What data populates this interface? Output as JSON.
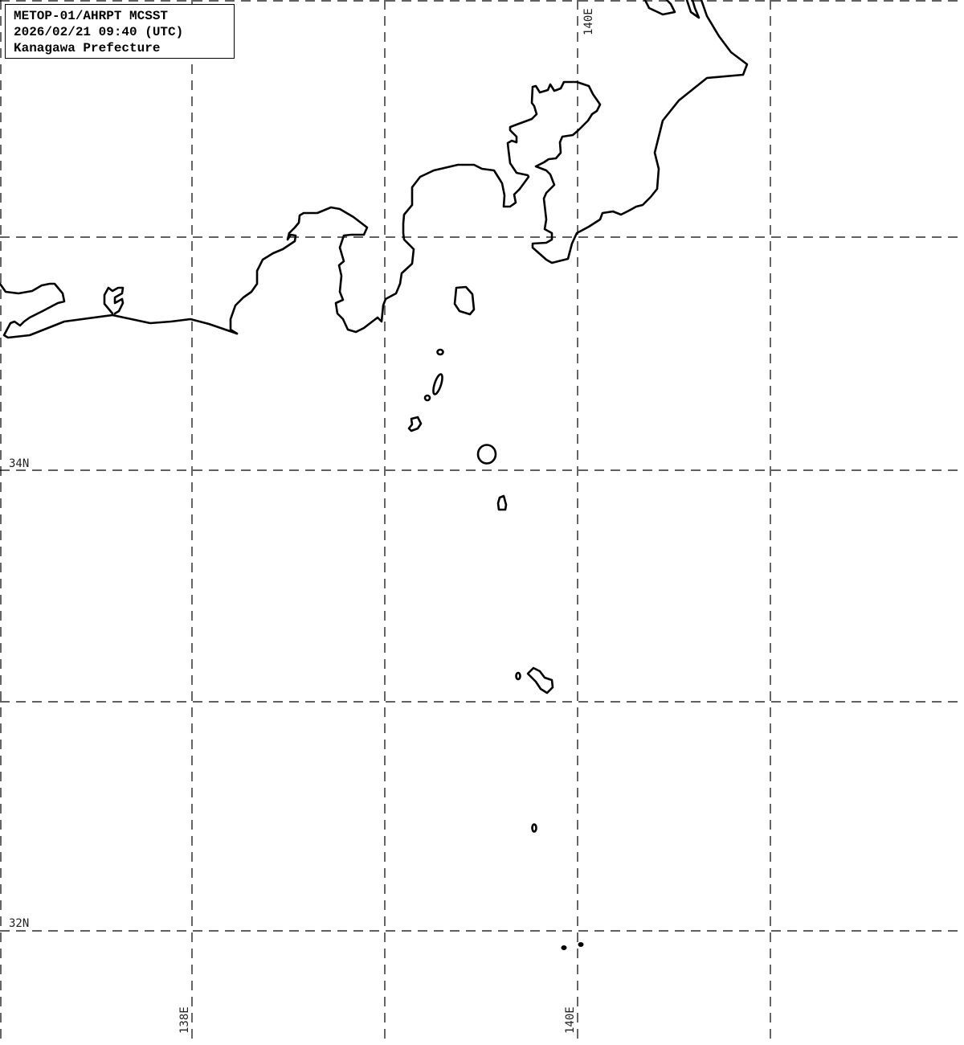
{
  "title_box": {
    "line1": "METOP-01/AHRPT MCSST",
    "line2": "2026/02/21 09:40 (UTC)",
    "line3": "Kanagawa Prefecture"
  },
  "grid_labels": {
    "lat_34": "34N",
    "lat_32": "32N",
    "lon_138": "138E",
    "lon_140_bottom": "140E",
    "lon_140_top": "140E"
  },
  "colors": {
    "coastline": "#000000",
    "grid": "#000000",
    "background": "#ffffff"
  }
}
